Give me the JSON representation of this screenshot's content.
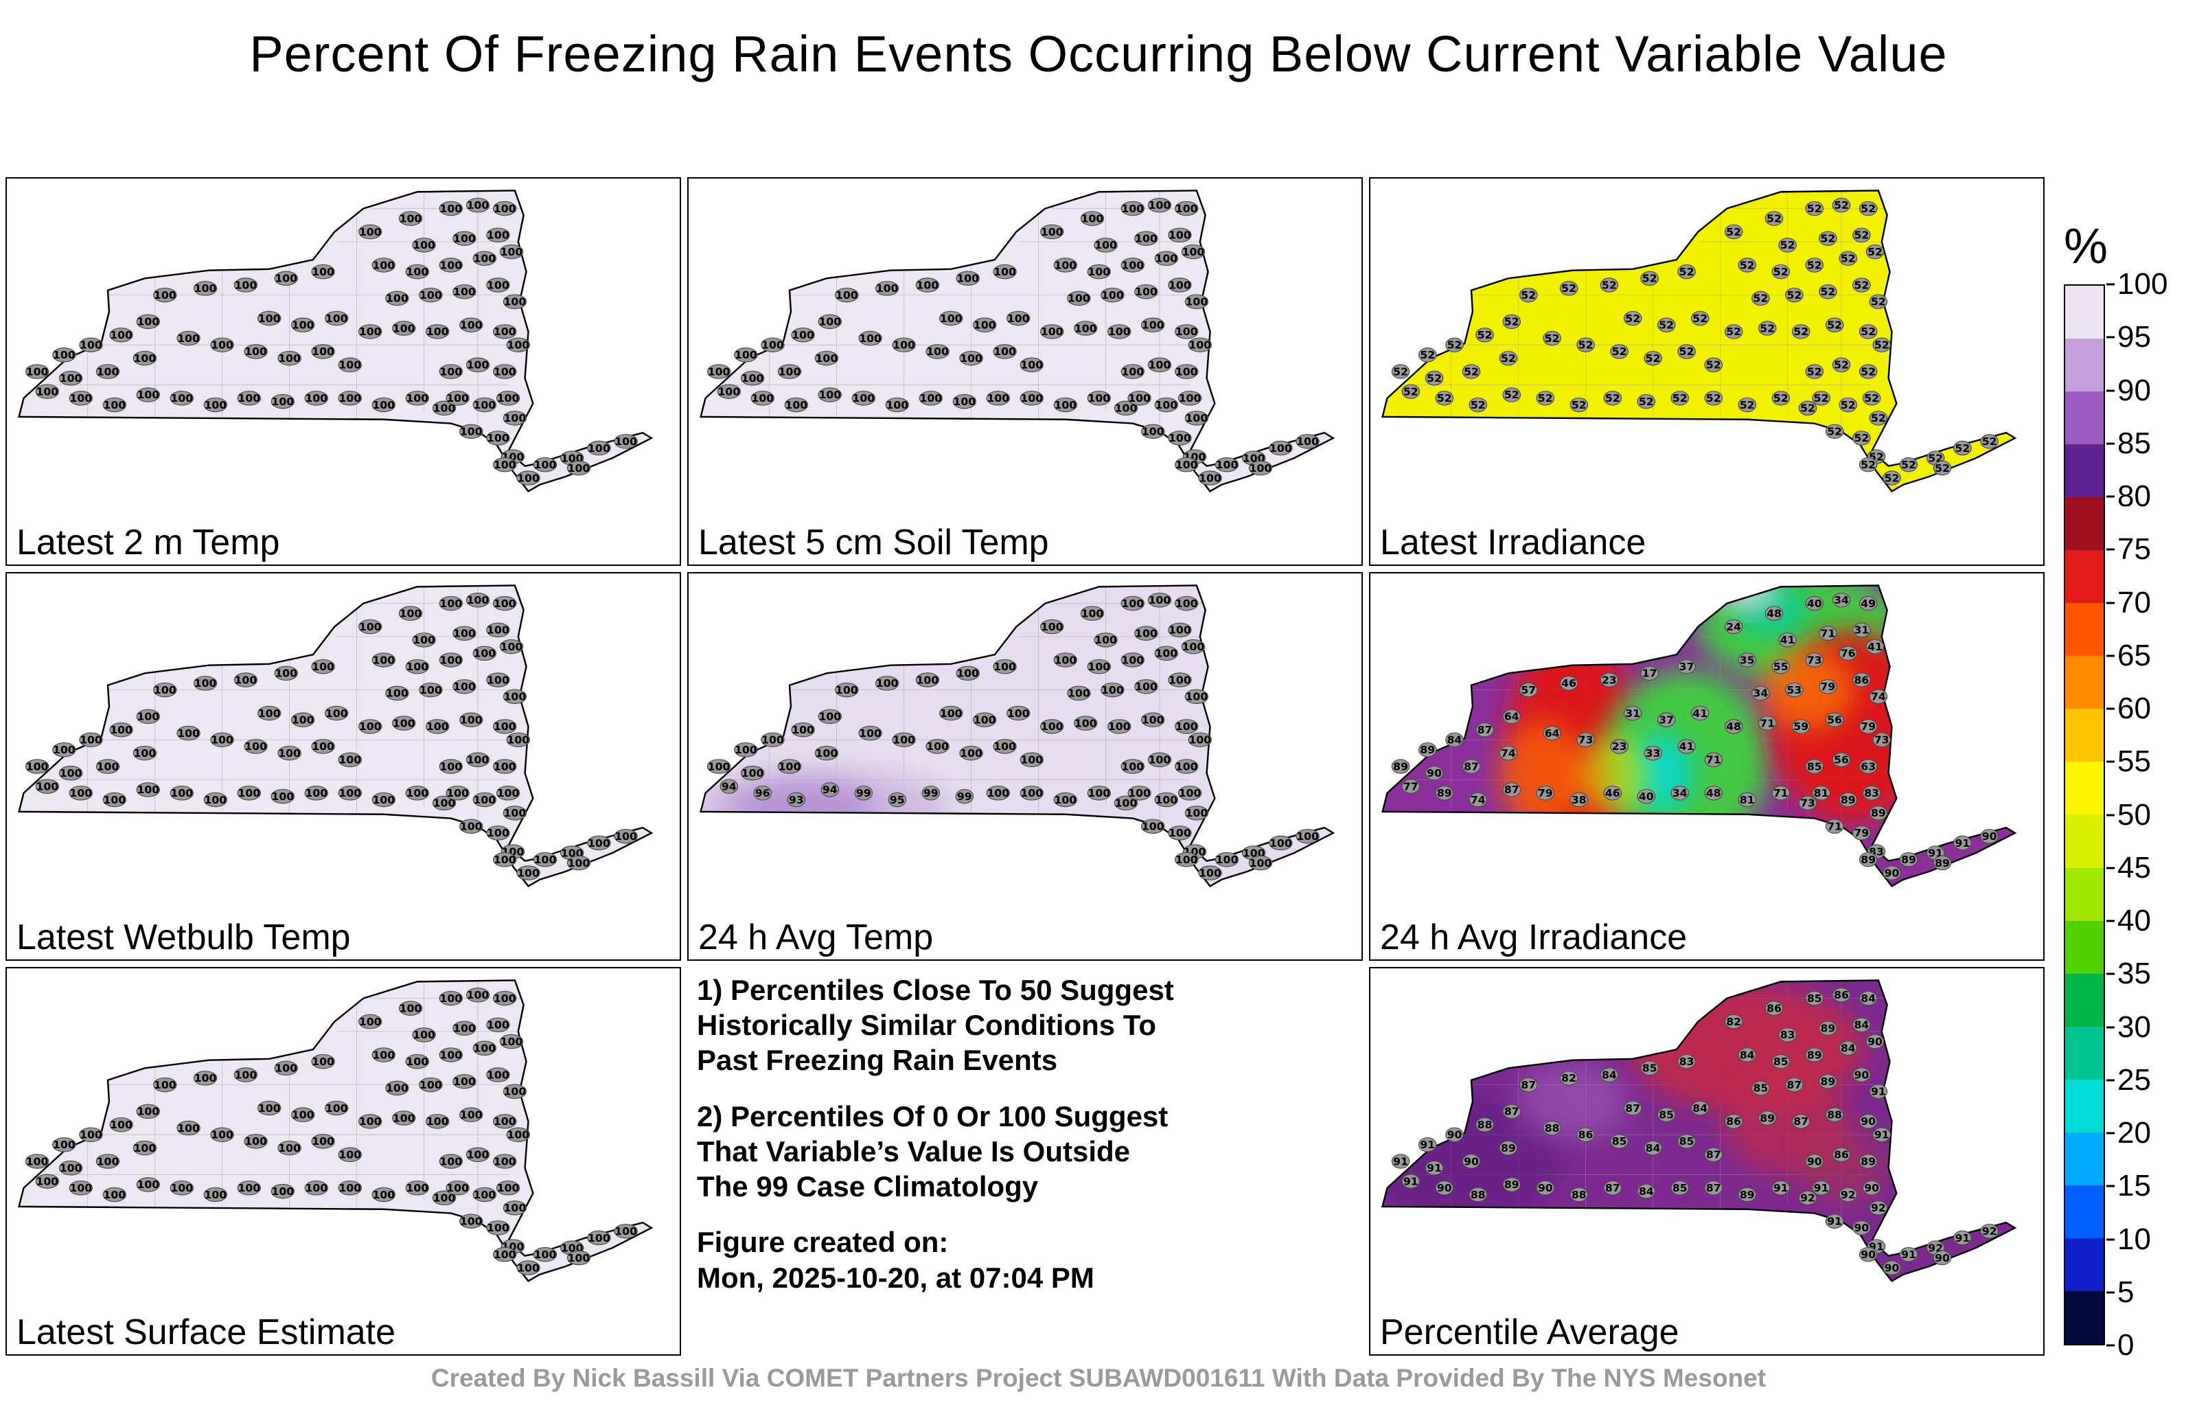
{
  "title": "Percent Of Freezing Rain Events Occurring Below Current Variable Value",
  "footer": "Created By Nick Bassill Via COMET Partners Project SUBAWD001611 With Data Provided By The NYS Mesonet",
  "notes": {
    "para1": "1) Percentiles Close To 50 Suggest\nHistorically Similar Conditions To\nPast Freezing Rain Events",
    "para2": "2) Percentiles Of 0 Or 100 Suggest\nThat Variable’s Value Is Outside\nThe 99 Case Climatology",
    "created": "Figure created on:\nMon, 2025-10-20, at 07:04 PM"
  },
  "colorbar": {
    "label": "%",
    "ticks": [
      100,
      95,
      90,
      85,
      80,
      75,
      70,
      65,
      60,
      55,
      50,
      45,
      40,
      35,
      30,
      25,
      20,
      15,
      10,
      5,
      0
    ],
    "segment_colors": [
      "#ece4f3",
      "#c3a0d9",
      "#9a5cbe",
      "#5f2394",
      "#9c1020",
      "#e31a1a",
      "#ff5500",
      "#ff8c00",
      "#ffc300",
      "#fdf400",
      "#d8f000",
      "#a0e800",
      "#4fd000",
      "#00b44a",
      "#00c492",
      "#00dcd8",
      "#00aaff",
      "#0060ff",
      "#1020c8",
      "#050a3c"
    ]
  },
  "chart_data": {
    "type": "heatmap",
    "region": "New York State station percentile maps",
    "stations": [
      [
        235,
        175
      ],
      [
        295,
        165
      ],
      [
        355,
        160
      ],
      [
        415,
        150
      ],
      [
        470,
        140
      ],
      [
        540,
        80
      ],
      [
        600,
        60
      ],
      [
        660,
        45
      ],
      [
        700,
        40
      ],
      [
        740,
        45
      ],
      [
        620,
        100
      ],
      [
        680,
        90
      ],
      [
        730,
        85
      ],
      [
        560,
        130
      ],
      [
        610,
        140
      ],
      [
        660,
        130
      ],
      [
        710,
        120
      ],
      [
        750,
        110
      ],
      [
        580,
        180
      ],
      [
        630,
        175
      ],
      [
        680,
        170
      ],
      [
        730,
        160
      ],
      [
        755,
        185
      ],
      [
        390,
        210
      ],
      [
        440,
        220
      ],
      [
        490,
        210
      ],
      [
        540,
        230
      ],
      [
        590,
        225
      ],
      [
        640,
        230
      ],
      [
        690,
        220
      ],
      [
        740,
        230
      ],
      [
        760,
        250
      ],
      [
        270,
        240
      ],
      [
        320,
        250
      ],
      [
        370,
        260
      ],
      [
        420,
        270
      ],
      [
        470,
        260
      ],
      [
        510,
        280
      ],
      [
        60,
        320
      ],
      [
        110,
        330
      ],
      [
        160,
        340
      ],
      [
        210,
        325
      ],
      [
        260,
        330
      ],
      [
        310,
        340
      ],
      [
        360,
        330
      ],
      [
        410,
        335
      ],
      [
        460,
        330
      ],
      [
        510,
        330
      ],
      [
        560,
        340
      ],
      [
        610,
        330
      ],
      [
        650,
        345
      ],
      [
        660,
        290
      ],
      [
        700,
        280
      ],
      [
        740,
        290
      ],
      [
        670,
        330
      ],
      [
        710,
        340
      ],
      [
        745,
        330
      ],
      [
        690,
        380
      ],
      [
        730,
        390
      ],
      [
        755,
        360
      ],
      [
        752,
        418
      ],
      [
        740,
        430
      ],
      [
        775,
        450
      ],
      [
        800,
        430
      ],
      [
        840,
        420
      ],
      [
        880,
        405
      ],
      [
        920,
        395
      ],
      [
        850,
        435
      ],
      [
        45,
        290
      ],
      [
        85,
        265
      ],
      [
        125,
        250
      ],
      [
        170,
        235
      ],
      [
        210,
        215
      ],
      [
        95,
        300
      ],
      [
        150,
        290
      ],
      [
        205,
        270
      ]
    ],
    "panels": [
      {
        "id": "latest-2m-temp",
        "label": "Latest 2 m Temp",
        "fill": "#ede7f4",
        "values_all": 100
      },
      {
        "id": "latest-5cm-soil-temp",
        "label": "Latest 5 cm Soil Temp",
        "fill": "#ede7f4",
        "values_all": 100
      },
      {
        "id": "latest-irradiance",
        "label": "Latest Irradiance",
        "fill": "#f2f200",
        "values_all": 52
      },
      {
        "id": "latest-wetbulb-temp",
        "label": "Latest Wetbulb Temp",
        "fill": "#ede7f4",
        "values_all": 100
      },
      {
        "id": "24h-avg-temp",
        "label": "24 h Avg Temp",
        "fill": "#e7ddf0",
        "blobs": [
          [
            200,
            350,
            190,
            55,
            "#cdb5e0",
            0.9
          ],
          [
            170,
            352,
            110,
            38,
            "#b18bd0",
            0.85
          ]
        ],
        "values": [
          100,
          100,
          100,
          100,
          100,
          100,
          100,
          100,
          100,
          100,
          100,
          100,
          100,
          100,
          100,
          100,
          100,
          100,
          100,
          100,
          100,
          100,
          100,
          100,
          100,
          100,
          100,
          100,
          100,
          100,
          100,
          100,
          100,
          100,
          100,
          100,
          100,
          100,
          94,
          96,
          93,
          94,
          99,
          95,
          99,
          99,
          100,
          100,
          100,
          100,
          100,
          100,
          100,
          100,
          100,
          100,
          100,
          100,
          100,
          100,
          100,
          100,
          100,
          100,
          100,
          100,
          100,
          100,
          100,
          100,
          100,
          100,
          100,
          100,
          100,
          100
        ]
      },
      {
        "id": "24h-avg-irradiance",
        "label": "24 h Avg Irradiance",
        "fill": "#8b2f9a",
        "blobs": [
          [
            300,
            250,
            95,
            165,
            "#e01818",
            0.95
          ],
          [
            255,
            305,
            65,
            85,
            "#ff7700",
            0.6
          ],
          [
            470,
            280,
            125,
            135,
            "#3fd23f",
            0.95
          ],
          [
            430,
            300,
            48,
            58,
            "#00d8d8",
            0.9
          ],
          [
            640,
            80,
            155,
            85,
            "#3fd23f",
            0.95
          ],
          [
            595,
            55,
            55,
            38,
            "#00c8a0",
            0.8
          ],
          [
            560,
            28,
            45,
            26,
            "#e8e0f0",
            0.85
          ],
          [
            715,
            230,
            120,
            145,
            "#e01818",
            0.95
          ],
          [
            650,
            175,
            70,
            60,
            "#ff8800",
            0.65
          ],
          [
            360,
            305,
            55,
            60,
            "#f0e000",
            0.55
          ]
        ],
        "values": [
          57,
          46,
          23,
          17,
          37,
          24,
          48,
          40,
          34,
          49,
          41,
          71,
          31,
          35,
          55,
          73,
          76,
          41,
          34,
          53,
          79,
          86,
          74,
          31,
          37,
          41,
          48,
          71,
          59,
          56,
          79,
          73,
          64,
          73,
          23,
          33,
          41,
          71,
          77,
          89,
          74,
          87,
          79,
          38,
          46,
          40,
          34,
          48,
          81,
          71,
          73,
          85,
          56,
          63,
          81,
          89,
          83,
          71,
          79,
          89,
          83,
          89,
          90,
          89,
          91,
          91,
          90,
          89,
          89,
          89,
          84,
          87,
          64,
          90,
          87,
          74
        ]
      },
      {
        "id": "latest-surface-estimate",
        "label": "Latest Surface Estimate",
        "fill": "#ede7f4",
        "values_all": 100
      },
      {
        "id": "percentile-average",
        "label": "Percentile Average",
        "fill": "#7c2a90",
        "blobs": [
          [
            560,
            120,
            175,
            95,
            "#c22a4a",
            0.9
          ],
          [
            620,
            235,
            95,
            75,
            "#c22a4a",
            0.7
          ],
          [
            140,
            285,
            150,
            100,
            "#5c1f80",
            0.55
          ],
          [
            300,
            200,
            85,
            60,
            "#a569c0",
            0.5
          ],
          [
            700,
            300,
            65,
            55,
            "#b03050",
            0.55
          ]
        ],
        "values": [
          87,
          82,
          84,
          85,
          83,
          82,
          86,
          85,
          86,
          84,
          83,
          89,
          84,
          84,
          85,
          89,
          84,
          90,
          85,
          87,
          89,
          90,
          91,
          87,
          85,
          84,
          86,
          89,
          87,
          88,
          90,
          91,
          88,
          86,
          85,
          84,
          85,
          87,
          91,
          90,
          88,
          89,
          90,
          88,
          87,
          84,
          85,
          87,
          89,
          91,
          92,
          90,
          86,
          89,
          91,
          92,
          90,
          91,
          90,
          92,
          91,
          90,
          90,
          91,
          92,
          91,
          92,
          90,
          91,
          91,
          90,
          88,
          87,
          91,
          90,
          89
        ]
      }
    ]
  }
}
